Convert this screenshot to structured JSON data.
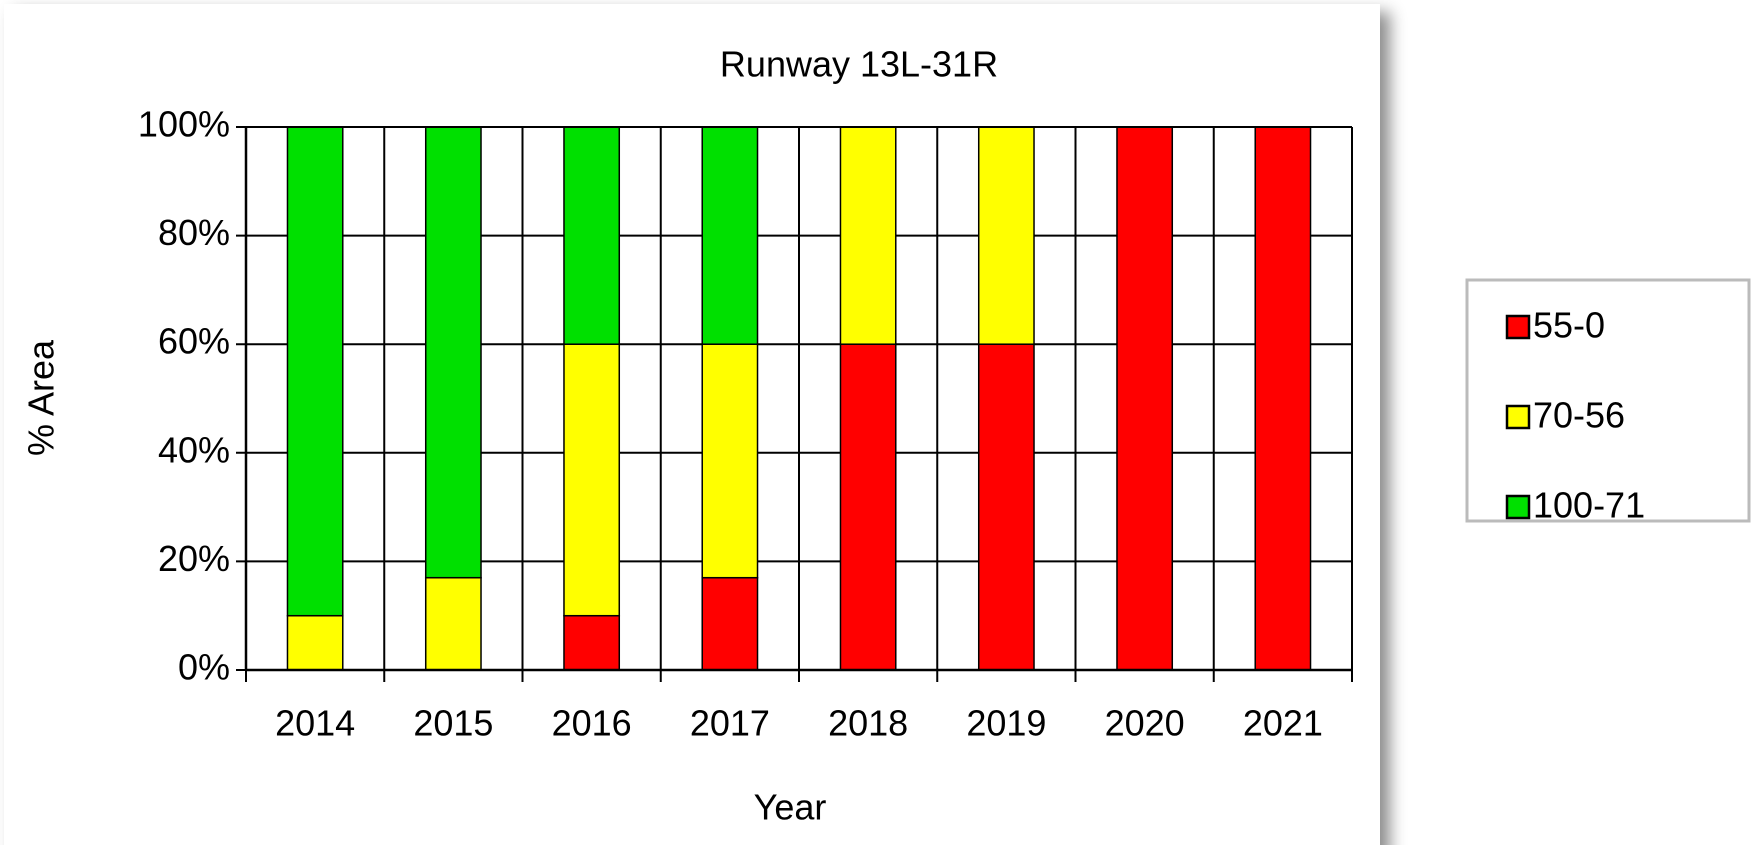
{
  "chart_data": {
    "type": "stacked_bar",
    "title": "Runway 13L-31R",
    "xlabel": "Year",
    "ylabel": "% Area",
    "categories": [
      "2014",
      "2015",
      "2016",
      "2017",
      "2018",
      "2019",
      "2020",
      "2021"
    ],
    "series": [
      {
        "name": "55-0",
        "color": "#ff0000",
        "values": [
          0,
          0,
          10,
          17,
          60,
          60,
          100,
          100
        ]
      },
      {
        "name": "70-56",
        "color": "#ffff00",
        "values": [
          10,
          17,
          50,
          43,
          40,
          40,
          0,
          0
        ]
      },
      {
        "name": "100-71",
        "color": "#00e000",
        "values": [
          90,
          83,
          40,
          40,
          0,
          0,
          0,
          0
        ]
      }
    ],
    "ylim": [
      0,
      100
    ],
    "yticks": [
      {
        "value": 0,
        "label": "0%"
      },
      {
        "value": 20,
        "label": "20%"
      },
      {
        "value": 40,
        "label": "40%"
      },
      {
        "value": 60,
        "label": "60%"
      },
      {
        "value": 80,
        "label": "80%"
      },
      {
        "value": 100,
        "label": "100%"
      }
    ],
    "grid": true,
    "legend": "right"
  }
}
